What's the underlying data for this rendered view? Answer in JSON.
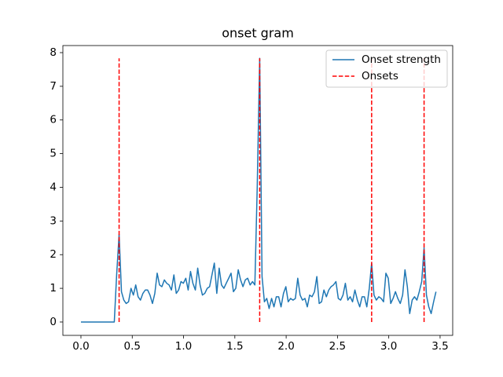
{
  "chart_data": {
    "type": "line",
    "title": "onset gram",
    "xlim": [
      -0.176,
      3.623
    ],
    "ylim": [
      -0.397,
      8.21
    ],
    "xticks": [
      {
        "value": 0,
        "label": "0.0"
      },
      0.5,
      {
        "value": 1,
        "label": "1.0"
      },
      1.5,
      {
        "value": 2,
        "label": "2.0"
      },
      2.5,
      {
        "value": 3,
        "label": "3.0"
      },
      3.5
    ],
    "yticks": [
      0,
      1,
      2,
      3,
      4,
      5,
      6,
      7,
      8
    ],
    "legend": "upper right",
    "series": [
      {
        "name": "Onset strength",
        "color": "#1f77b4",
        "x": [
          0,
          0.023,
          0.046,
          0.07,
          0.093,
          0.116,
          0.139,
          0.163,
          0.186,
          0.209,
          0.232,
          0.255,
          0.279,
          0.302,
          0.325,
          0.348,
          0.372,
          0.395,
          0.418,
          0.441,
          0.464,
          0.488,
          0.511,
          0.534,
          0.557,
          0.58,
          0.604,
          0.627,
          0.65,
          0.673,
          0.697,
          0.72,
          0.743,
          0.766,
          0.789,
          0.813,
          0.836,
          0.859,
          0.882,
          0.906,
          0.929,
          0.952,
          0.975,
          0.998,
          1.022,
          1.045,
          1.068,
          1.091,
          1.115,
          1.138,
          1.161,
          1.184,
          1.207,
          1.231,
          1.254,
          1.277,
          1.3,
          1.324,
          1.347,
          1.37,
          1.393,
          1.416,
          1.44,
          1.463,
          1.486,
          1.509,
          1.533,
          1.556,
          1.579,
          1.602,
          1.625,
          1.649,
          1.672,
          1.695,
          1.718,
          1.742,
          1.765,
          1.788,
          1.811,
          1.834,
          1.858,
          1.881,
          1.904,
          1.927,
          1.95,
          1.974,
          1.997,
          2.02,
          2.043,
          2.067,
          2.09,
          2.113,
          2.136,
          2.159,
          2.183,
          2.206,
          2.229,
          2.252,
          2.276,
          2.299,
          2.322,
          2.345,
          2.368,
          2.392,
          2.415,
          2.438,
          2.461,
          2.485,
          2.508,
          2.531,
          2.554,
          2.577,
          2.601,
          2.624,
          2.647,
          2.67,
          2.694,
          2.717,
          2.74,
          2.763,
          2.786,
          2.81,
          2.833,
          2.856,
          2.879,
          2.903,
          2.926,
          2.949,
          2.972,
          2.995,
          3.019,
          3.042,
          3.065,
          3.088,
          3.112,
          3.135,
          3.158,
          3.181,
          3.204,
          3.228,
          3.251,
          3.274,
          3.297,
          3.321,
          3.344,
          3.367,
          3.39,
          3.413,
          3.437,
          3.46
        ],
        "values": [
          0,
          0,
          0,
          0,
          0,
          0,
          0,
          0,
          0,
          0,
          0,
          0,
          0,
          0,
          0,
          1.4,
          2.6,
          0.9,
          0.65,
          0.55,
          0.6,
          1.0,
          0.8,
          1.1,
          0.75,
          0.65,
          0.85,
          0.95,
          0.95,
          0.8,
          0.55,
          0.85,
          1.45,
          1.1,
          1.05,
          1.25,
          1.15,
          1.1,
          0.95,
          1.4,
          0.85,
          0.95,
          1.2,
          1.15,
          1.3,
          0.95,
          1.5,
          1.15,
          0.95,
          1.6,
          1.1,
          0.8,
          0.85,
          1.0,
          1.05,
          1.4,
          1.75,
          0.85,
          1.6,
          1.1,
          1.0,
          1.15,
          1.3,
          1.45,
          0.9,
          1.0,
          1.55,
          1.25,
          1.05,
          1.25,
          1.3,
          1.1,
          1.2,
          1.1,
          4.0,
          7.83,
          1.35,
          0.6,
          0.7,
          0.4,
          0.7,
          0.45,
          0.75,
          0.75,
          0.45,
          0.85,
          1.05,
          0.6,
          0.7,
          0.65,
          0.7,
          1.3,
          0.8,
          0.65,
          0.7,
          0.45,
          0.8,
          0.75,
          0.9,
          1.35,
          0.55,
          0.6,
          0.95,
          0.75,
          0.95,
          1.05,
          1.1,
          1.2,
          0.7,
          0.65,
          0.8,
          1.15,
          0.65,
          0.75,
          0.6,
          0.95,
          0.65,
          0.45,
          0.75,
          0.75,
          0.45,
          1.0,
          1.75,
          0.8,
          0.65,
          0.75,
          0.7,
          0.6,
          1.45,
          1.3,
          0.55,
          0.7,
          0.9,
          0.7,
          0.55,
          0.8,
          1.55,
          1.05,
          0.25,
          0.65,
          0.75,
          0.65,
          0.9,
          1.2,
          2.2,
          0.8,
          0.45,
          0.25,
          0.6,
          0.9
        ]
      },
      {
        "name": "Onsets",
        "color": "#ff0000",
        "style": "dashed",
        "type": "vlines",
        "x": [
          0.372,
          1.742,
          2.833,
          3.344
        ],
        "ymin": 0,
        "ymax": 7.83
      }
    ]
  }
}
